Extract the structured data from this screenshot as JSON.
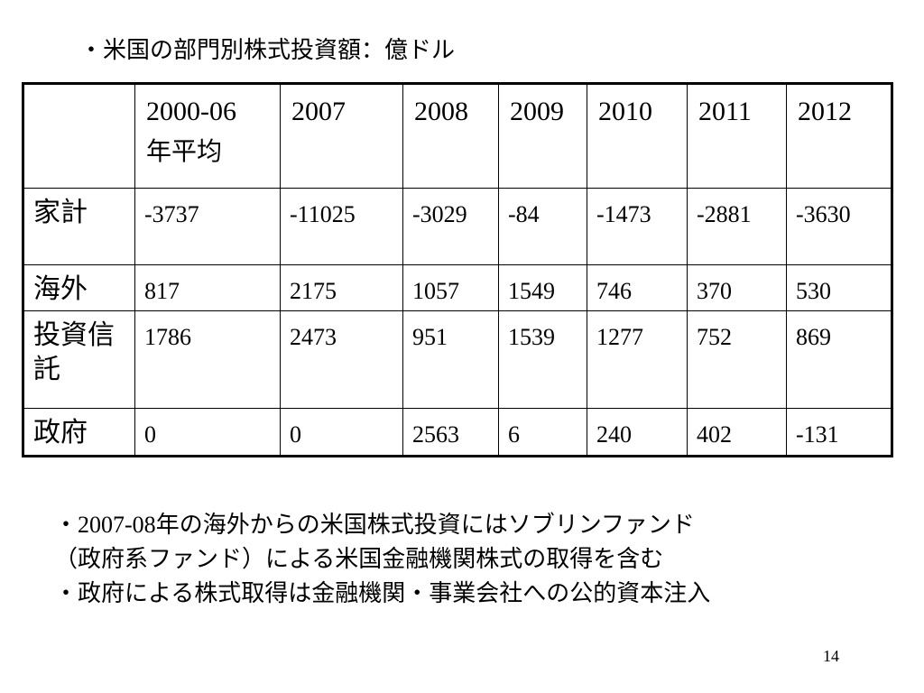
{
  "slide": {
    "title": "・米国の部門別株式投資額：億ドル",
    "page_number": "14"
  },
  "table": {
    "header": {
      "corner": "",
      "columns": [
        {
          "label": "2000-06",
          "sub": "年平均"
        },
        {
          "label": "2007",
          "sub": ""
        },
        {
          "label": "2008",
          "sub": ""
        },
        {
          "label": "2009",
          "sub": ""
        },
        {
          "label": "2010",
          "sub": ""
        },
        {
          "label": "2011",
          "sub": ""
        },
        {
          "label": "2012",
          "sub": ""
        }
      ]
    },
    "rows": [
      {
        "label": "家計",
        "values": [
          "-3737",
          "-11025",
          "-3029",
          "-84",
          "-1473",
          "-2881",
          "-3630"
        ]
      },
      {
        "label": "海外",
        "values": [
          "817",
          "2175",
          "1057",
          "1549",
          "746",
          "370",
          "530"
        ]
      },
      {
        "label": "投資信託",
        "values": [
          "1786",
          "2473",
          "951",
          "1539",
          "1277",
          "752",
          "869"
        ]
      },
      {
        "label": "政府",
        "values": [
          "0",
          "0",
          "2563",
          "6",
          "240",
          "402",
          "-131"
        ]
      }
    ]
  },
  "notes": {
    "line1_bullet": "・",
    "line1_year": "2007-08",
    "line1_text": "年の海外からの米国株式投資にはソブリンファンド",
    "line2": "（政府系ファンド）による米国金融機関株式の取得を含む",
    "line3": "・政府による株式取得は金融機関・事業会社への公的資本注入"
  }
}
